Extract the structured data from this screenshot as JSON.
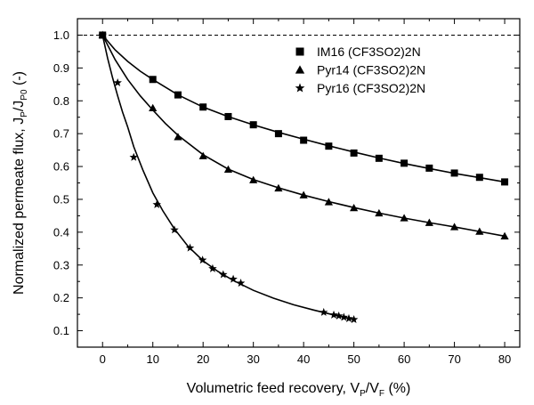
{
  "chart_data": {
    "type": "scatter",
    "xlabel": {
      "base": "Volumetric feed recovery, V",
      "sub1": "P",
      "mid": "/V",
      "sub2": "F",
      "tail": " (%)"
    },
    "ylabel": {
      "base": "Normalized permeate flux, J",
      "sub1": "P",
      "mid": "/J",
      "sub2": "P0",
      "tail": " (-)"
    },
    "xlim": [
      -5,
      83
    ],
    "ylim": [
      0.05,
      1.05
    ],
    "xticks": [
      0,
      10,
      20,
      30,
      40,
      50,
      60,
      70,
      80
    ],
    "yticks": [
      0.1,
      0.2,
      0.3,
      0.4,
      0.5,
      0.6,
      0.7,
      0.8,
      0.9,
      1.0
    ],
    "ytick_labels": [
      "0.1",
      "0.2",
      "0.3",
      "0.4",
      "0.5",
      "0.6",
      "0.7",
      "0.8",
      "0.9",
      "1.0"
    ],
    "reference_line": {
      "y": 1.0,
      "style": "dashed"
    },
    "legend_position": "top-right",
    "series": [
      {
        "name": "IM16 (CF3SO2)2N",
        "marker": "square",
        "points": [
          [
            0,
            1.0
          ],
          [
            10,
            0.865
          ],
          [
            15,
            0.818
          ],
          [
            20,
            0.781
          ],
          [
            25,
            0.752
          ],
          [
            30,
            0.727
          ],
          [
            35,
            0.7
          ],
          [
            40,
            0.68
          ],
          [
            45,
            0.662
          ],
          [
            50,
            0.641
          ],
          [
            55,
            0.625
          ],
          [
            60,
            0.61
          ],
          [
            65,
            0.595
          ],
          [
            70,
            0.58
          ],
          [
            75,
            0.567
          ],
          [
            80,
            0.553
          ]
        ],
        "fit": [
          [
            0,
            1.0
          ],
          [
            2.5,
            0.955
          ],
          [
            5,
            0.92
          ],
          [
            7.5,
            0.89
          ],
          [
            10,
            0.865
          ],
          [
            15,
            0.818
          ],
          [
            20,
            0.781
          ],
          [
            25,
            0.752
          ],
          [
            30,
            0.727
          ],
          [
            35,
            0.704
          ],
          [
            40,
            0.683
          ],
          [
            45,
            0.663
          ],
          [
            50,
            0.644
          ],
          [
            55,
            0.626
          ],
          [
            60,
            0.609
          ],
          [
            65,
            0.594
          ],
          [
            70,
            0.579
          ],
          [
            75,
            0.566
          ],
          [
            80,
            0.553
          ]
        ]
      },
      {
        "name": "Pyr14 (CF3SO2)2N",
        "marker": "triangle",
        "points": [
          [
            0,
            1.0
          ],
          [
            10,
            0.778
          ],
          [
            15,
            0.69
          ],
          [
            20,
            0.632
          ],
          [
            25,
            0.591
          ],
          [
            30,
            0.559
          ],
          [
            35,
            0.534
          ],
          [
            40,
            0.513
          ],
          [
            45,
            0.492
          ],
          [
            50,
            0.474
          ],
          [
            55,
            0.458
          ],
          [
            60,
            0.443
          ],
          [
            65,
            0.429
          ],
          [
            70,
            0.416
          ],
          [
            75,
            0.402
          ],
          [
            80,
            0.388
          ]
        ],
        "fit": [
          [
            0,
            1.0
          ],
          [
            2.5,
            0.925
          ],
          [
            5,
            0.865
          ],
          [
            7.5,
            0.815
          ],
          [
            10,
            0.772
          ],
          [
            12.5,
            0.731
          ],
          [
            15,
            0.695
          ],
          [
            20,
            0.636
          ],
          [
            25,
            0.592
          ],
          [
            30,
            0.56
          ],
          [
            35,
            0.535
          ],
          [
            40,
            0.513
          ],
          [
            45,
            0.493
          ],
          [
            50,
            0.475
          ],
          [
            55,
            0.458
          ],
          [
            60,
            0.443
          ],
          [
            65,
            0.429
          ],
          [
            70,
            0.416
          ],
          [
            75,
            0.402
          ],
          [
            80,
            0.388
          ]
        ]
      },
      {
        "name": "Pyr16 (CF3SO2)2N",
        "marker": "star",
        "points": [
          [
            0,
            1.0
          ],
          [
            3,
            0.855
          ],
          [
            6.2,
            0.628
          ],
          [
            10.8,
            0.484
          ],
          [
            14.3,
            0.407
          ],
          [
            17.4,
            0.352
          ],
          [
            19.9,
            0.315
          ],
          [
            21.9,
            0.289
          ],
          [
            24,
            0.271
          ],
          [
            26,
            0.257
          ],
          [
            27.5,
            0.245
          ],
          [
            44,
            0.156
          ],
          [
            46,
            0.148
          ],
          [
            47,
            0.145
          ],
          [
            48,
            0.141
          ],
          [
            49,
            0.137
          ],
          [
            50,
            0.134
          ]
        ],
        "fit": [
          [
            0,
            1.0
          ],
          [
            1,
            0.93
          ],
          [
            2,
            0.87
          ],
          [
            3,
            0.815
          ],
          [
            4,
            0.765
          ],
          [
            5,
            0.72
          ],
          [
            6.2,
            0.66
          ],
          [
            8,
            0.59
          ],
          [
            10,
            0.52
          ],
          [
            12,
            0.465
          ],
          [
            14.3,
            0.41
          ],
          [
            17,
            0.357
          ],
          [
            20,
            0.313
          ],
          [
            23,
            0.28
          ],
          [
            26,
            0.253
          ],
          [
            30,
            0.223
          ],
          [
            34,
            0.199
          ],
          [
            38,
            0.179
          ],
          [
            42,
            0.163
          ],
          [
            46,
            0.148
          ],
          [
            50,
            0.134
          ]
        ]
      }
    ]
  }
}
